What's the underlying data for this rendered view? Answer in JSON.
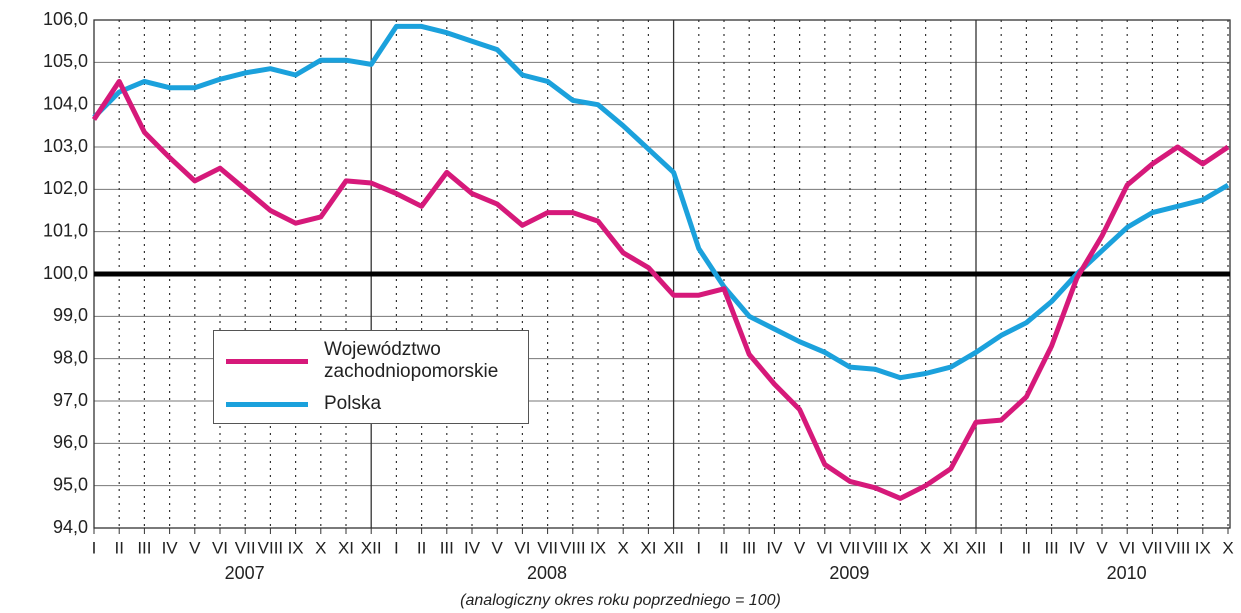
{
  "chart_data": {
    "type": "line",
    "categories": [
      "I",
      "II",
      "III",
      "IV",
      "V",
      "VI",
      "VII",
      "VIII",
      "IX",
      "X",
      "XI",
      "XII",
      "I",
      "II",
      "III",
      "IV",
      "V",
      "VI",
      "VII",
      "VIII",
      "IX",
      "X",
      "XI",
      "XII",
      "I",
      "II",
      "III",
      "IV",
      "V",
      "VI",
      "VII",
      "VIII",
      "IX",
      "X",
      "XI",
      "XII",
      "I",
      "II",
      "III",
      "IV",
      "V",
      "VI",
      "VII",
      "VIII",
      "IX",
      "X"
    ],
    "years": [
      "2007",
      "2008",
      "2009",
      "2010"
    ],
    "series": [
      {
        "name": "Województwo zachodniopomorskie",
        "color": "#d6197a",
        "values": [
          103.65,
          104.55,
          103.35,
          102.75,
          102.2,
          102.5,
          102.0,
          101.5,
          101.2,
          101.35,
          102.2,
          102.15,
          101.9,
          101.6,
          102.4,
          101.9,
          101.65,
          101.15,
          101.45,
          101.45,
          101.25,
          100.5,
          100.15,
          99.5,
          99.5,
          99.65,
          98.1,
          97.4,
          96.8,
          95.5,
          95.1,
          94.95,
          94.7,
          95.0,
          95.4,
          96.5,
          96.55,
          97.1,
          98.3,
          99.9,
          100.9,
          102.1,
          102.6,
          103.0,
          102.6,
          103.0
        ]
      },
      {
        "name": "Polska",
        "color": "#1ba1dc",
        "values": [
          103.7,
          104.3,
          104.55,
          104.4,
          104.4,
          104.6,
          104.75,
          104.85,
          104.7,
          105.05,
          105.05,
          104.95,
          105.85,
          105.85,
          105.7,
          105.5,
          105.3,
          104.7,
          104.55,
          104.1,
          104.0,
          103.5,
          102.95,
          102.4,
          100.6,
          99.7,
          99.0,
          98.7,
          98.4,
          98.15,
          97.8,
          97.75,
          97.55,
          97.65,
          97.8,
          98.15,
          98.55,
          98.85,
          99.35,
          100.0,
          100.55,
          101.1,
          101.45,
          101.6,
          101.75,
          102.1
        ]
      }
    ],
    "ylim": [
      94,
      106
    ],
    "yticks": [
      {
        "value": 94,
        "label": "94,0"
      },
      {
        "value": 95,
        "label": "95,0"
      },
      {
        "value": 96,
        "label": "96,0"
      },
      {
        "value": 97,
        "label": "97,0"
      },
      {
        "value": 98,
        "label": "98,0"
      },
      {
        "value": 99,
        "label": "99,0"
      },
      {
        "value": 100,
        "label": "100,0"
      },
      {
        "value": 101,
        "label": "101,0"
      },
      {
        "value": 102,
        "label": "102,0"
      },
      {
        "value": 103,
        "label": "103,0"
      },
      {
        "value": 104,
        "label": "104,0"
      },
      {
        "value": 105,
        "label": "105,0"
      },
      {
        "value": 106,
        "label": "106,0"
      }
    ],
    "reference_line": 100,
    "grid": true,
    "legend": "inside",
    "footnote": "(analogiczny okres roku poprzedniego = 100)"
  }
}
